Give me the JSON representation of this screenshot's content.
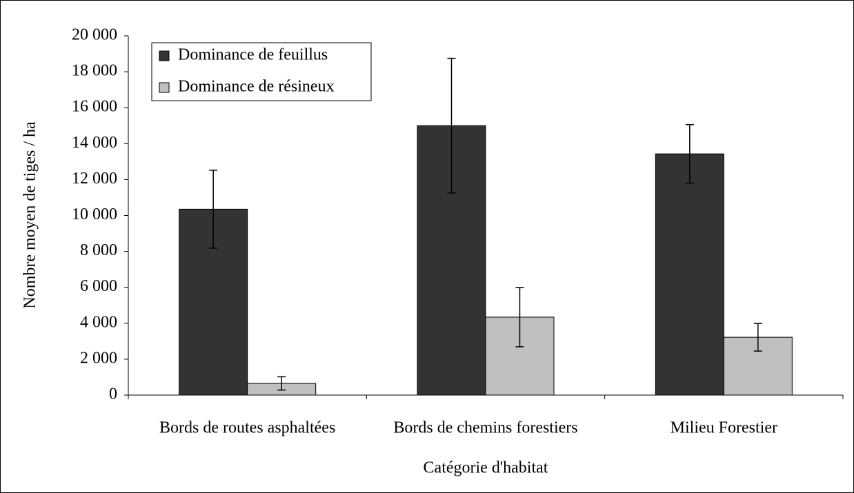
{
  "chart_data": {
    "type": "bar",
    "x_label": "Catégorie d'habitat",
    "y_label": "Nombre moyen de tiges / ha",
    "categories": [
      "Bords de routes asphaltées",
      "Bords de chemins forestiers",
      "Milieu Forestier"
    ],
    "series": [
      {
        "name": "Dominance de feuillus",
        "color": "#333333",
        "values": [
          10350,
          15000,
          13430
        ],
        "errors": [
          2170,
          3750,
          1630
        ]
      },
      {
        "name": "Dominance de résineux",
        "color": "#c0c0c0",
        "values": [
          650,
          4340,
          3220
        ],
        "errors": [
          370,
          1650,
          770
        ]
      }
    ],
    "ylim": [
      0,
      20000
    ],
    "yticks": [
      0,
      {
        "value": 2000,
        "label": "2 000"
      },
      {
        "value": 4000,
        "label": "4 000"
      },
      {
        "value": 6000,
        "label": "6 000"
      },
      {
        "value": 8000,
        "label": "8 000"
      },
      {
        "value": 10000,
        "label": "10 000"
      },
      {
        "value": 12000,
        "label": "12 000"
      },
      {
        "value": 14000,
        "label": "14 000"
      },
      {
        "value": 16000,
        "label": "16 000"
      },
      {
        "value": 18000,
        "label": "18 000"
      },
      {
        "value": 20000,
        "label": "20 000"
      }
    ],
    "grid": false,
    "legend": "top-left"
  }
}
